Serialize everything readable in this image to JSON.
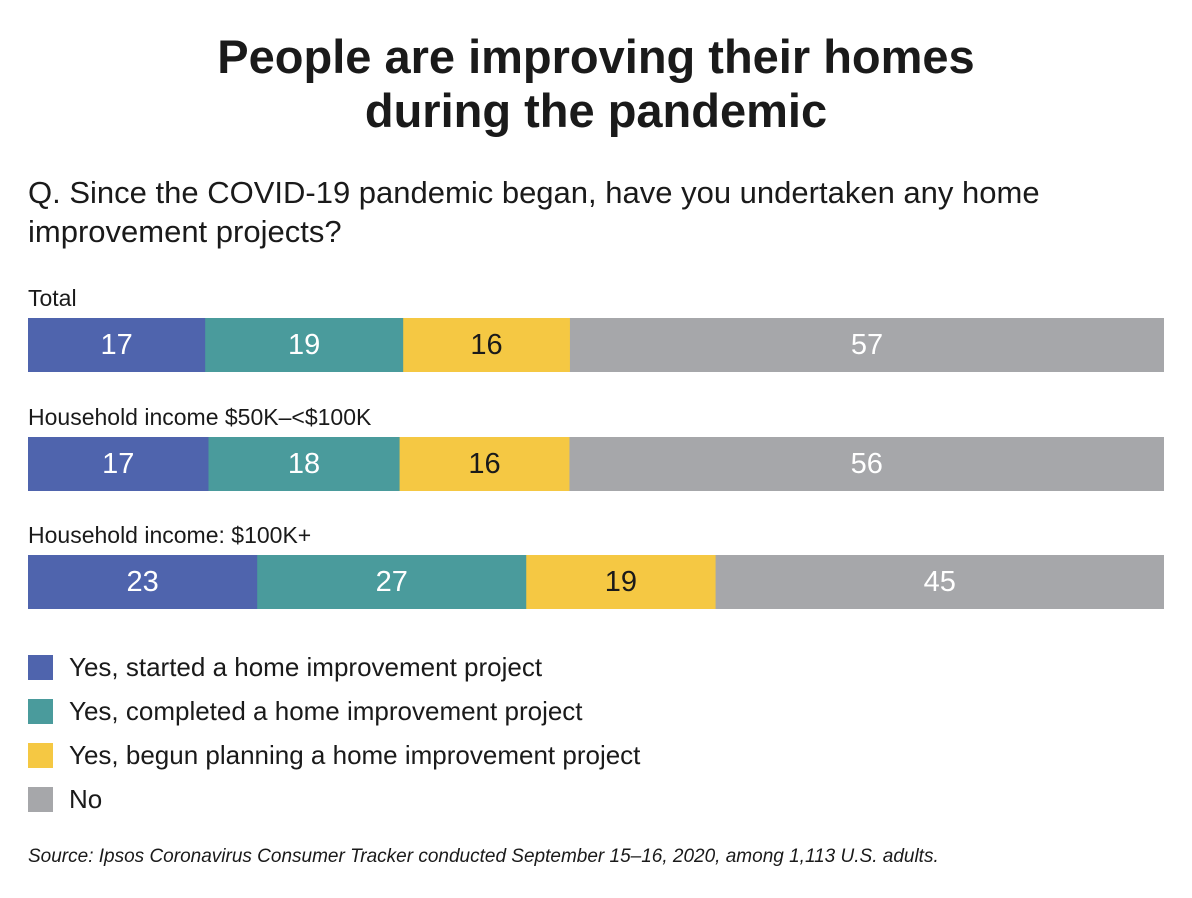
{
  "title_line1": "People are improving their homes",
  "title_line2": "during the pandemic",
  "question": "Q. Since the COVID-19 pandemic began, have you undertaken any home improvement projects?",
  "source": "Source: Ipsos Coronavirus Consumer Tracker conducted September 15–16, 2020, among 1,113 U.S. adults.",
  "colors": {
    "started": "#4f64ad",
    "completed": "#4a9b9c",
    "planning": "#f5c843",
    "no": "#a6a7aa",
    "label_light": "#ffffff",
    "label_dark": "#1a1a1a"
  },
  "chart_data": {
    "type": "bar",
    "orientation": "horizontal",
    "stacked": true,
    "categories": [
      "Total",
      "Household income $50K–<$100K",
      "Household income: $100K+"
    ],
    "series": [
      {
        "name": "Yes, started a home improvement project",
        "values": [
          17,
          17,
          23
        ]
      },
      {
        "name": "Yes, completed a home improvement project",
        "values": [
          19,
          18,
          27
        ]
      },
      {
        "name": "Yes, begun planning a home improvement project",
        "values": [
          16,
          16,
          19
        ]
      },
      {
        "name": "No",
        "values": [
          57,
          56,
          45
        ]
      }
    ],
    "legend_position": "bottom-left",
    "grid": false
  }
}
